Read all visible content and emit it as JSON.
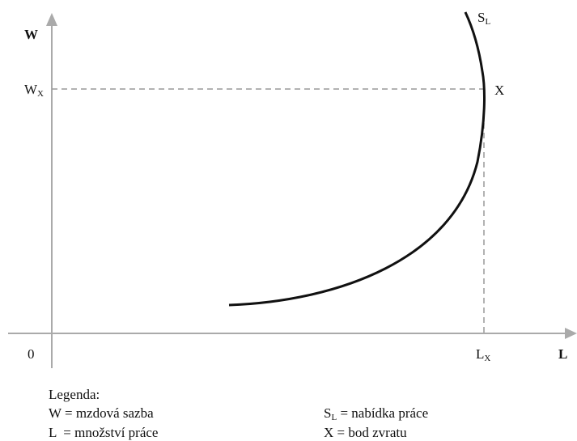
{
  "diagram": {
    "y_axis": {
      "label": "W",
      "tick": {
        "main": "W",
        "sub": "X"
      }
    },
    "x_axis": {
      "label": "L",
      "origin": "0",
      "tick": {
        "main": "L",
        "sub": "X"
      }
    },
    "curve": {
      "main": "S",
      "sub": "L"
    },
    "point": "X",
    "legend": {
      "title": "Legenda:",
      "left": [
        "W = mzdová sazba",
        "L  = množství práce"
      ],
      "right": [
        {
          "main": "S",
          "sub": "L",
          "text": " = nabídka práce"
        },
        {
          "main": "X = bod zvratu"
        }
      ]
    }
  }
}
